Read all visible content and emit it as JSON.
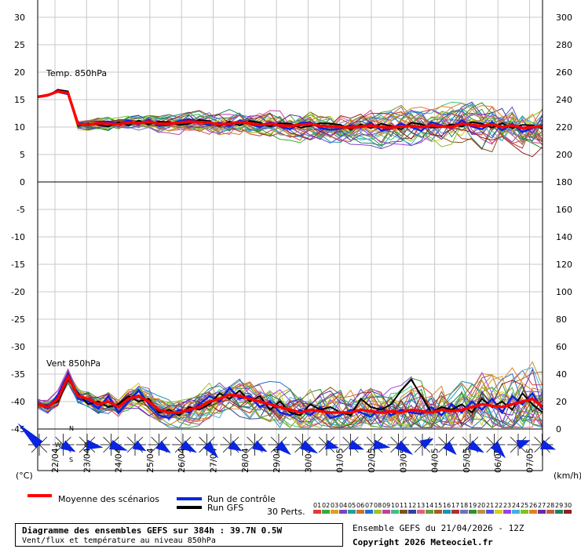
{
  "chart_data": {
    "type": "line",
    "title": "Diagramme des ensembles GEFS sur 384h : 39.7N 0.5W",
    "subtitle": "Vent/flux et température au niveau 850hPa",
    "run_info": "Ensemble GEFS du 21/04/2026 - 12Z",
    "copyright": "Copyright 2026 Meteociel.fr",
    "dates": [
      "22/04",
      "23/04",
      "24/04",
      "25/04",
      "26/04",
      "27/04",
      "28/04",
      "29/04",
      "30/04",
      "01/05",
      "02/05",
      "03/05",
      "04/05",
      "05/05",
      "06/05",
      "07/05"
    ],
    "left_axis": {
      "labels": [
        "30",
        "25",
        "20",
        "15",
        "10",
        "5",
        "0",
        "-5",
        "-10",
        "-15",
        "-20",
        "-25",
        "-30",
        "-35",
        "-40",
        "-45"
      ],
      "unit": "(°C)"
    },
    "right_axis": {
      "labels": [
        "300",
        "280",
        "260",
        "240",
        "220",
        "200",
        "180",
        "160",
        "140",
        "120",
        "100",
        "80",
        "60",
        "40",
        "20",
        "0"
      ],
      "unit": "(km/h)"
    },
    "temp_panel": {
      "label": "Temp. 850hPa",
      "ylim": [
        0,
        30
      ],
      "mean": [
        15.5,
        15.8,
        16.5,
        16.2,
        10.5,
        10.4,
        10.7,
        10.6,
        10.5,
        10.8,
        10.7,
        11.0,
        10.6,
        10.6,
        10.8,
        11.0,
        10.9,
        10.8,
        10.5,
        10.6,
        10.9,
        10.7,
        10.4,
        10.6,
        10.3,
        10.2,
        10.4,
        10.6,
        10.2,
        10.1,
        10.0,
        9.9,
        10.1,
        10.3,
        10.0,
        9.9,
        10.1,
        10.2,
        10.0,
        10.3,
        10.1,
        10.0,
        10.6,
        10.4,
        10.2,
        10.5,
        10.0,
        10.3,
        9.8,
        10.0,
        10.1
      ],
      "control": [
        15.5,
        15.9,
        16.4,
        16.0,
        10.8,
        10.3,
        10.9,
        11.0,
        10.6,
        11.2,
        10.5,
        11.3,
        10.2,
        10.4,
        11.1,
        11.4,
        11.0,
        10.4,
        10.8,
        10.2,
        11.2,
        10.6,
        10.0,
        10.9,
        10.1,
        9.6,
        10.7,
        10.9,
        9.8,
        9.5,
        9.7,
        10.3,
        9.9,
        10.8,
        9.4,
        9.7,
        10.6,
        10.0,
        9.3,
        10.9,
        10.3,
        9.8,
        11.2,
        10.1,
        9.6,
        10.9,
        9.4,
        10.6,
        9.1,
        9.8,
        10.4
      ],
      "gfs": [
        15.5,
        15.7,
        16.8,
        16.5,
        10.2,
        10.6,
        10.4,
        10.1,
        10.9,
        10.3,
        11.2,
        10.5,
        11.0,
        10.9,
        10.4,
        10.6,
        11.3,
        11.1,
        10.2,
        11.0,
        10.3,
        11.1,
        10.8,
        10.1,
        10.7,
        10.6,
        9.9,
        10.2,
        10.7,
        10.6,
        10.4,
        9.5,
        10.5,
        9.8,
        10.6,
        10.2,
        9.6,
        10.8,
        10.5,
        9.9,
        10.0,
        10.5,
        10.1,
        10.9,
        10.6,
        9.9,
        10.7,
        9.8,
        10.4,
        10.3,
        9.7
      ]
    },
    "wind_panel": {
      "label": "Vent 850hPa",
      "ylim": [
        0,
        180
      ],
      "mean": [
        18,
        16,
        22,
        38,
        24,
        22,
        18,
        20,
        16,
        22,
        24,
        20,
        14,
        12,
        12,
        14,
        16,
        20,
        22,
        25,
        24,
        22,
        20,
        18,
        16,
        14,
        12,
        14,
        13,
        12,
        12,
        12,
        14,
        13,
        12,
        13,
        12,
        14,
        13,
        12,
        14,
        13,
        14,
        16,
        18,
        17,
        16,
        18,
        20,
        22,
        16
      ],
      "control": [
        18,
        15,
        25,
        40,
        22,
        20,
        15,
        24,
        12,
        20,
        28,
        18,
        10,
        8,
        14,
        12,
        18,
        24,
        20,
        30,
        22,
        24,
        16,
        20,
        12,
        10,
        14,
        10,
        16,
        8,
        10,
        14,
        12,
        9,
        16,
        10,
        14,
        12,
        11,
        16,
        10,
        18,
        12,
        20,
        14,
        22,
        12,
        24,
        18,
        26,
        14
      ],
      "gfs": [
        18,
        17,
        20,
        36,
        26,
        18,
        20,
        16,
        18,
        24,
        20,
        22,
        12,
        14,
        10,
        16,
        14,
        18,
        26,
        22,
        28,
        20,
        24,
        14,
        20,
        12,
        10,
        18,
        14,
        16,
        12,
        10,
        22,
        16,
        14,
        18,
        28,
        36,
        24,
        12,
        16,
        14,
        18,
        12,
        22,
        16,
        20,
        14,
        26,
        18,
        12
      ]
    },
    "wind_directions_deg": [
      225,
      60,
      80,
      70,
      60,
      55,
      60,
      40,
      60,
      60,
      50,
      60,
      75,
      70,
      80,
      55,
      120,
      45,
      60,
      40,
      110,
      70
    ],
    "legend": {
      "mean": "Moyenne des scénarios",
      "control": "Run de contrôle",
      "gfs": "Run GFS",
      "perts": "30 Perts.",
      "pert_numbers": [
        "01",
        "02",
        "03",
        "04",
        "05",
        "06",
        "07",
        "08",
        "09",
        "10",
        "11",
        "12",
        "13",
        "14",
        "15",
        "16",
        "17",
        "18",
        "19",
        "20",
        "21",
        "22",
        "23",
        "24",
        "25",
        "26",
        "27",
        "28",
        "29",
        "30"
      ],
      "pert_colors": [
        "#e03a3a",
        "#3aa83a",
        "#e0a020",
        "#8040c0",
        "#20a0a0",
        "#d07030",
        "#2070d0",
        "#a0c030",
        "#c040a0",
        "#40c080",
        "#805020",
        "#3040a0",
        "#e06080",
        "#60a040",
        "#a06020",
        "#2090b0",
        "#b03030",
        "#7070c0",
        "#309030",
        "#c09040",
        "#5050e0",
        "#d0d020",
        "#a040e0",
        "#40b0e0",
        "#80c020",
        "#e08020",
        "#6030a0",
        "#c06040",
        "#208060",
        "#902020"
      ],
      "compass": {
        "n": "N",
        "s": "S",
        "e": "E",
        "w": "W"
      }
    }
  }
}
